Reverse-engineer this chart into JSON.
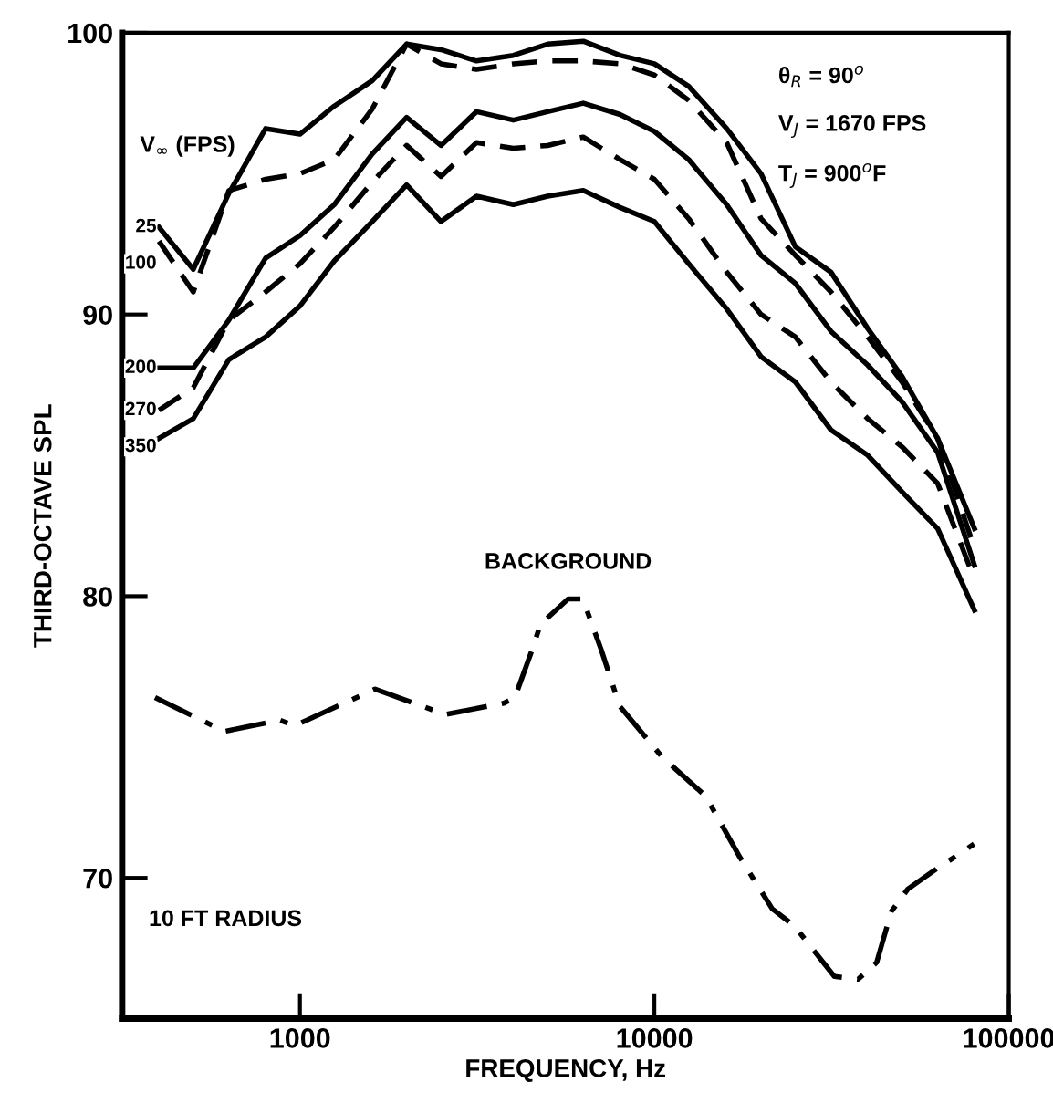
{
  "chart_data": {
    "type": "line",
    "xlabel": "FREQUENCY, Hz",
    "ylabel": "THIRD-OCTAVE SPL",
    "log": "x",
    "xlim": [
      315,
      100000
    ],
    "xticks": [
      1000,
      10000,
      100000
    ],
    "ylim": [
      65,
      100
    ],
    "yticks": [
      70,
      80,
      90,
      100
    ],
    "grid": false,
    "legend": false,
    "marker": "none",
    "annotations": [
      "θ$_{R}$ = 90$^{o}$",
      "V$_{J}$ = 1670 FPS",
      "T$_{J}$ = 900$^{o}$F",
      "V$_{∞}$ (FPS)",
      "10 FT RADIUS"
    ],
    "x": [
      400,
      500,
      630,
      800,
      1000,
      1250,
      1600,
      2000,
      2500,
      3150,
      4000,
      5000,
      6300,
      8000,
      10000,
      12500,
      16000,
      20000,
      25000,
      31500,
      40000,
      50000,
      63000,
      80000
    ],
    "series": [
      {
        "name": "25",
        "color": "#000000",
        "line_style": "solid",
        "values": [
          93.1,
          91.6,
          94.3,
          96.6,
          96.4,
          97.4,
          98.3,
          99.6,
          99.4,
          99.0,
          99.2,
          99.6,
          99.7,
          99.2,
          98.9,
          98.1,
          96.6,
          95.0,
          92.4,
          91.5,
          89.5,
          87.8,
          85.6,
          82.4
        ]
      },
      {
        "name": "100",
        "color": "#000000",
        "line_style": "dashed",
        "values": [
          92.6,
          90.8,
          94.4,
          94.8,
          95.0,
          95.5,
          97.3,
          99.6,
          98.9,
          98.7,
          98.9,
          99.0,
          99.0,
          98.9,
          98.5,
          97.6,
          96.1,
          93.4,
          92.1,
          90.8,
          89.2,
          87.6,
          85.6,
          81.7
        ]
      },
      {
        "name": "200",
        "color": "#000000",
        "line_style": "solid",
        "values": [
          88.1,
          88.1,
          89.8,
          92.0,
          92.8,
          93.9,
          95.7,
          97.0,
          96.0,
          97.2,
          96.9,
          97.2,
          97.5,
          97.1,
          96.5,
          95.5,
          93.9,
          92.1,
          91.1,
          89.4,
          88.2,
          86.9,
          85.1,
          81.1
        ]
      },
      {
        "name": "270",
        "color": "#000000",
        "line_style": "dashed",
        "values": [
          86.6,
          87.4,
          89.8,
          90.8,
          91.8,
          93.1,
          94.7,
          96.0,
          94.9,
          96.1,
          95.9,
          96.0,
          96.3,
          95.5,
          94.8,
          93.4,
          91.5,
          90.0,
          89.2,
          87.6,
          86.3,
          85.3,
          84.0,
          80.6
        ]
      },
      {
        "name": "350",
        "color": "#000000",
        "line_style": "solid",
        "values": [
          85.6,
          86.3,
          88.4,
          89.2,
          90.3,
          91.9,
          93.3,
          94.6,
          93.3,
          94.2,
          93.9,
          94.2,
          94.4,
          93.8,
          93.3,
          91.8,
          90.2,
          88.5,
          87.6,
          85.9,
          85.0,
          83.7,
          82.4,
          79.5
        ]
      },
      {
        "name": "BACKGROUND",
        "color": "#000000",
        "line_style": "dashdot",
        "x": [
          390,
          613,
          877,
          965,
          1630,
          2570,
          3760,
          4040,
          4550,
          4770,
          5710,
          6280,
          7080,
          7980,
          10500,
          13960,
          17300,
          21500,
          24800,
          32200,
          37600,
          42400,
          46600,
          51900,
          60600,
          79800
        ],
        "values": [
          76.4,
          75.2,
          75.6,
          75.4,
          76.7,
          75.8,
          76.2,
          76.4,
          78.2,
          79.0,
          79.9,
          79.9,
          78.1,
          76.1,
          74.3,
          72.9,
          70.8,
          68.9,
          68.3,
          66.5,
          66.4,
          67.0,
          68.8,
          69.6,
          70.2,
          71.2
        ]
      }
    ]
  }
}
